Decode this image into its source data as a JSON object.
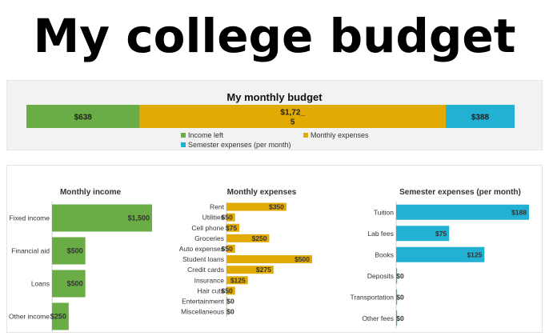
{
  "page_title": "My college budget",
  "colors": {
    "income": "#6aac45",
    "monthly": "#e2ab04",
    "semester": "#22b0d3"
  },
  "chart_data": [
    {
      "type": "bar",
      "orientation": "horizontal-stacked",
      "title": "My monthly budget",
      "series": [
        {
          "name": "Income left",
          "value": 638,
          "label": "$638",
          "label_lines": [
            "$638"
          ]
        },
        {
          "name": "Monthly expenses",
          "value": 1725,
          "label": "$1,725",
          "label_lines": [
            "$1,72_",
            "5"
          ]
        },
        {
          "name": "Semester expenses (per month)",
          "value": 388,
          "label": "$388",
          "label_lines": [
            "$388"
          ]
        }
      ],
      "legend": "bottom"
    },
    {
      "type": "bar",
      "orientation": "horizontal",
      "title": "Monthly income",
      "categories": [
        "Fixed income",
        "Financial aid",
        "Loans",
        "Other income"
      ],
      "values": [
        1500,
        500,
        500,
        250
      ],
      "value_labels": [
        "$1,500",
        "$500",
        "$500",
        "$250"
      ],
      "xlim": [
        0,
        1500
      ]
    },
    {
      "type": "bar",
      "orientation": "horizontal",
      "title": "Monthly expenses",
      "categories": [
        "Rent",
        "Utilities",
        "Cell phone",
        "Groceries",
        "Auto expenses",
        "Student loans",
        "Credit cards",
        "Insurance",
        "Hair cuts",
        "Entertainment",
        "Miscellaneous"
      ],
      "values": [
        350,
        50,
        75,
        250,
        50,
        500,
        275,
        125,
        50,
        0,
        0
      ],
      "value_labels": [
        "$350",
        "$50",
        "$75",
        "$250",
        "$50",
        "$500",
        "$275",
        "$125",
        "$50",
        "$0",
        "$0"
      ],
      "xlim": [
        0,
        500
      ]
    },
    {
      "type": "bar",
      "orientation": "horizontal",
      "title": "Semester expenses (per month)",
      "categories": [
        "Tuition",
        "Lab fees",
        "Books",
        "Deposits",
        "Transportation",
        "Other fees"
      ],
      "values": [
        188,
        75,
        125,
        0,
        0,
        0
      ],
      "value_labels": [
        "$188",
        "$75",
        "$125",
        "$0",
        "$0",
        "$0"
      ],
      "xlim": [
        0,
        188
      ]
    }
  ]
}
